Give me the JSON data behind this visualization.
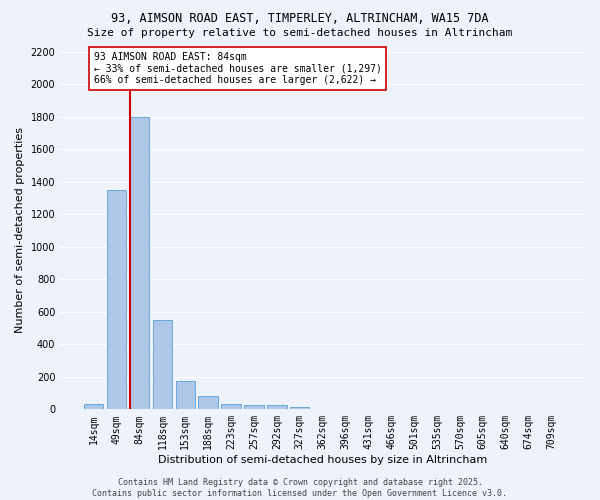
{
  "title1": "93, AIMSON ROAD EAST, TIMPERLEY, ALTRINCHAM, WA15 7DA",
  "title2": "Size of property relative to semi-detached houses in Altrincham",
  "xlabel": "Distribution of semi-detached houses by size in Altrincham",
  "ylabel": "Number of semi-detached properties",
  "bar_labels": [
    "14sqm",
    "49sqm",
    "84sqm",
    "118sqm",
    "153sqm",
    "188sqm",
    "223sqm",
    "257sqm",
    "292sqm",
    "327sqm",
    "362sqm",
    "396sqm",
    "431sqm",
    "466sqm",
    "501sqm",
    "535sqm",
    "570sqm",
    "605sqm",
    "640sqm",
    "674sqm",
    "709sqm"
  ],
  "bar_heights": [
    35,
    1350,
    1800,
    550,
    175,
    80,
    35,
    25,
    25,
    15,
    0,
    0,
    0,
    0,
    0,
    0,
    0,
    0,
    0,
    0,
    0
  ],
  "bar_color": "#aec6e8",
  "bar_edge_color": "#5a9fd4",
  "vline_color": "#cc0000",
  "ylim": [
    0,
    2200
  ],
  "yticks": [
    0,
    200,
    400,
    600,
    800,
    1000,
    1200,
    1400,
    1600,
    1800,
    2000,
    2200
  ],
  "annotation_text": "93 AIMSON ROAD EAST: 84sqm\n← 33% of semi-detached houses are smaller (1,297)\n66% of semi-detached houses are larger (2,622) →",
  "annotation_box_color": "#ffffff",
  "annotation_border_color": "#cc0000",
  "footer_text": "Contains HM Land Registry data © Crown copyright and database right 2025.\nContains public sector information licensed under the Open Government Licence v3.0.",
  "background_color": "#eef2fa",
  "grid_color": "#ffffff",
  "title1_fontsize": 8.5,
  "title2_fontsize": 8,
  "tick_fontsize": 7,
  "ylabel_fontsize": 8,
  "xlabel_fontsize": 8,
  "annotation_fontsize": 7,
  "footer_fontsize": 6
}
